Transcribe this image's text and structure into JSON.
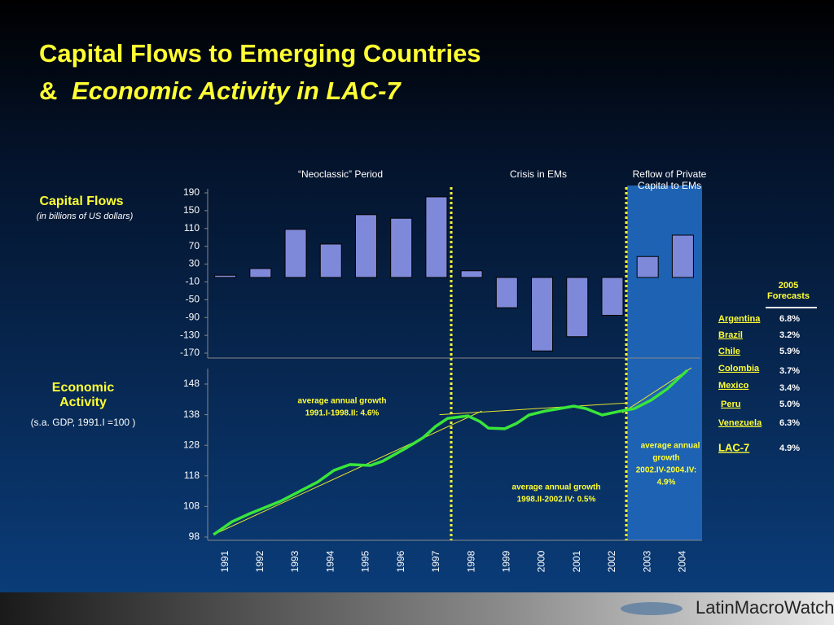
{
  "header": {
    "title_line1": "Capital Flows to Emerging Countries",
    "title_amp": "&",
    "title_line2": "Economic Activity in LAC-7"
  },
  "chart_data": [
    {
      "type": "bar",
      "title": "Capital Flows",
      "subtitle": "(in billions of US dollars)",
      "categories": [
        "1991",
        "1992",
        "1993",
        "1994",
        "1995",
        "1996",
        "1997",
        "1998",
        "1999",
        "2000",
        "2001",
        "2002",
        "2003",
        "2004"
      ],
      "values": [
        5,
        20,
        108,
        75,
        141,
        133,
        181,
        15,
        -68,
        -165,
        -133,
        -85,
        47,
        95
      ],
      "color": "#7f89d9",
      "ylim": [
        -170,
        190
      ],
      "yticks": [
        190,
        150,
        110,
        70,
        30,
        -10,
        -50,
        -90,
        -130,
        -170
      ],
      "annotations": [
        "“Neoclassic” Period",
        "Crisis in EMs",
        "Reflow of Private",
        "Capital to EMs"
      ]
    },
    {
      "type": "line",
      "title_lines": [
        "Economic",
        "Activity"
      ],
      "subtitle": "(s.a. GDP, 1991.I =100 )",
      "series": [
        {
          "color": "#39e639",
          "x": [
            1990.67,
            1991.2,
            1991.68,
            1992.62,
            1993.67,
            1994.14,
            1994.6,
            1995.19,
            1995.54,
            1996.25,
            1996.71,
            1997.07,
            1997.42,
            1998.0,
            1998.35,
            1998.59,
            1999.06,
            1999.41,
            1999.76,
            2000.23,
            2001.05,
            2001.4,
            2001.87,
            2002.33,
            2002.8,
            2003.27,
            2003.74,
            2004.32
          ],
          "values": [
            98.8,
            103,
            105.5,
            109.8,
            116,
            119.8,
            121.7,
            121.4,
            122.8,
            127.3,
            130.5,
            134.2,
            136.8,
            137.6,
            135.7,
            133.6,
            133.4,
            135.2,
            137.9,
            139.2,
            140.8,
            140,
            137.9,
            139,
            140,
            142.7,
            146.4,
            152.5
          ]
        }
      ],
      "trend_lines": [
        {
          "color": "#e6e62e",
          "x": [
            1990.67,
            1998.4
          ],
          "values": [
            98.8,
            139.2
          ]
        },
        {
          "color": "#e6e62e",
          "x": [
            1997.18,
            2002.57
          ],
          "values": [
            138.0,
            141.8
          ]
        },
        {
          "color": "#e6e62e",
          "x": [
            2002.45,
            2004.44
          ],
          "values": [
            138.6,
            153.3
          ]
        }
      ],
      "xlim": [
        1990.5,
        2004.7
      ],
      "ylim": [
        98,
        153.5
      ],
      "yticks": [
        148,
        138,
        128,
        118,
        108,
        98
      ],
      "annotations": [
        [
          "average annual growth",
          "1991.I-1998.II:  4.6%"
        ],
        [
          "average annual growth",
          "1998.II-2002.IV: 0.5%"
        ],
        [
          "average annual",
          "growth",
          "2002.IV-2004.IV:",
          "4.9%"
        ]
      ]
    }
  ],
  "forecasts": {
    "title_lines": [
      "2005",
      "Forecasts"
    ],
    "rows": [
      [
        "Argentina",
        "6.8%"
      ],
      [
        "Brazil",
        "3.2%"
      ],
      [
        "Chile",
        "5.9%"
      ],
      [
        "Colombia",
        "3.7%"
      ],
      [
        "Mexico",
        "3.4%"
      ],
      [
        "Peru",
        "5.0%"
      ],
      [
        "Venezuela",
        "6.3%"
      ],
      [
        "LAC-7",
        "4.9%"
      ]
    ]
  },
  "footer": {
    "logo": "LatinMacroWatch"
  }
}
